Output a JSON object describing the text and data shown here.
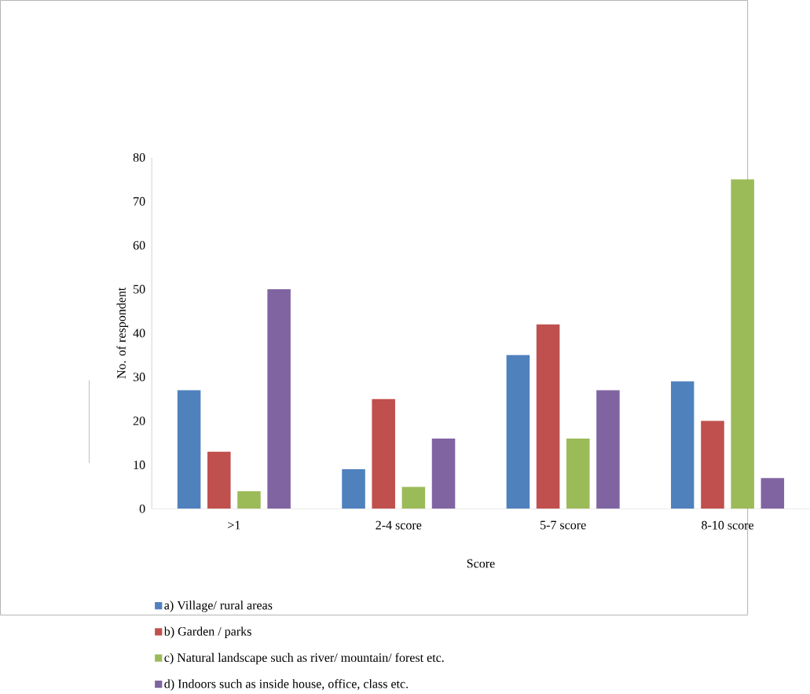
{
  "chart_data": {
    "type": "bar",
    "xlabel": "Score",
    "ylabel": "No. of respondent",
    "categories": [
      ">1",
      "2-4 score",
      "5-7 score",
      "8-10 score"
    ],
    "series": [
      {
        "name": "a) Village/ rural areas",
        "color": "#4f81bd",
        "values": [
          27,
          9,
          35,
          29
        ]
      },
      {
        "name": "b) Garden / parks",
        "color": "#c0504d",
        "values": [
          13,
          25,
          42,
          20
        ]
      },
      {
        "name": "c) Natural landscape such as river/ mountain/ forest etc.",
        "color": "#9bbb59",
        "values": [
          4,
          5,
          16,
          75
        ]
      },
      {
        "name": "d) Indoors such as inside house, office,  class etc.",
        "color": "#8064a2",
        "values": [
          50,
          16,
          27,
          7
        ]
      }
    ],
    "ylim": [
      0,
      80
    ],
    "yticks": [
      0,
      10,
      20,
      30,
      40,
      50,
      60,
      70,
      80
    ],
    "legend": "bottom",
    "grid": false
  }
}
